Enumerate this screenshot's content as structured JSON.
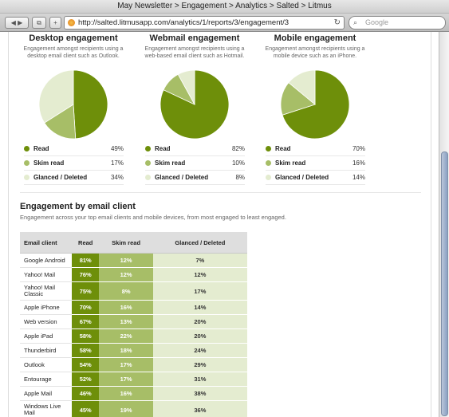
{
  "window": {
    "title": "May Newsletter > Engagement > Analytics > Salted > Litmus",
    "url": "http://salted.litmusapp.com/analytics/1/reports/3/engagement/3",
    "search_placeholder": "Google"
  },
  "colors": {
    "read": "#6e8f0a",
    "skim": "#a7be67",
    "glanced": "#e4ecd0"
  },
  "summary": [
    {
      "title": "Desktop engagement",
      "desc": "Engagement amongst recipients using a desktop email client such as Outlook.",
      "legend": [
        {
          "label": "Read",
          "pct": "49%"
        },
        {
          "label": "Skim read",
          "pct": "17%"
        },
        {
          "label": "Glanced / Deleted",
          "pct": "34%"
        }
      ]
    },
    {
      "title": "Webmail engagement",
      "desc": "Engagement amongst recipients using a web-based email client such as Hotmail.",
      "legend": [
        {
          "label": "Read",
          "pct": "82%"
        },
        {
          "label": "Skim read",
          "pct": "10%"
        },
        {
          "label": "Glanced / Deleted",
          "pct": "8%"
        }
      ]
    },
    {
      "title": "Mobile engagement",
      "desc": "Engagement amongst recipients using a mobile device such as an iPhone.",
      "legend": [
        {
          "label": "Read",
          "pct": "70%"
        },
        {
          "label": "Skim read",
          "pct": "16%"
        },
        {
          "label": "Glanced / Deleted",
          "pct": "14%"
        }
      ]
    }
  ],
  "chart_data": [
    {
      "type": "pie",
      "title": "Desktop engagement",
      "categories": [
        "Read",
        "Skim read",
        "Glanced / Deleted"
      ],
      "values": [
        49,
        17,
        34
      ]
    },
    {
      "type": "pie",
      "title": "Webmail engagement",
      "categories": [
        "Read",
        "Skim read",
        "Glanced / Deleted"
      ],
      "values": [
        82,
        10,
        8
      ]
    },
    {
      "type": "pie",
      "title": "Mobile engagement",
      "categories": [
        "Read",
        "Skim read",
        "Glanced / Deleted"
      ],
      "values": [
        70,
        16,
        14
      ]
    }
  ],
  "by_client": {
    "title": "Engagement by email client",
    "desc": "Engagement across your top email clients and mobile devices, from most engaged to least engaged.",
    "headers": [
      "Email client",
      "Read",
      "Skim read",
      "Glanced / Deleted"
    ],
    "rows": [
      [
        "Google Android",
        "81%",
        "12%",
        "7%"
      ],
      [
        "Yahoo! Mail",
        "76%",
        "12%",
        "12%"
      ],
      [
        "Yahoo! Mail Classic",
        "75%",
        "8%",
        "17%"
      ],
      [
        "Apple iPhone",
        "70%",
        "16%",
        "14%"
      ],
      [
        "Web version",
        "67%",
        "13%",
        "20%"
      ],
      [
        "Apple iPad",
        "58%",
        "22%",
        "20%"
      ],
      [
        "Thunderbird",
        "58%",
        "18%",
        "24%"
      ],
      [
        "Outlook",
        "54%",
        "17%",
        "29%"
      ],
      [
        "Entourage",
        "52%",
        "17%",
        "31%"
      ],
      [
        "Apple Mail",
        "46%",
        "16%",
        "38%"
      ],
      [
        "Windows Live Mail",
        "45%",
        "19%",
        "36%"
      ]
    ]
  }
}
